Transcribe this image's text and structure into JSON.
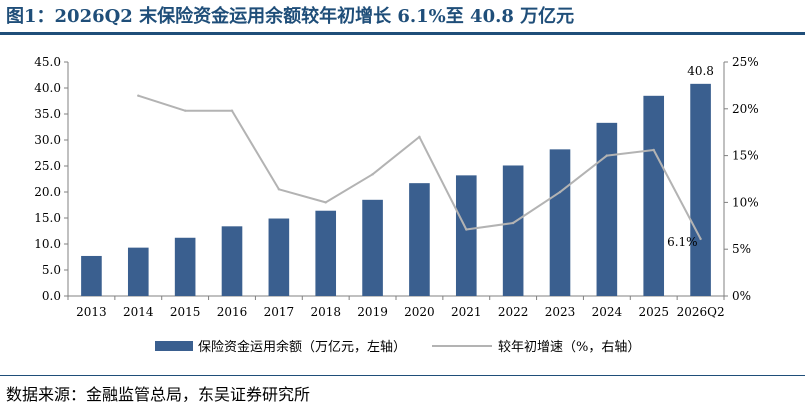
{
  "title": "图1：2026Q2 末保险资金运用余额较年初增长 6.1%至 40.8 万亿元",
  "source": "数据来源：金融监管总局，东吴证券研究所",
  "chart_data": {
    "type": "bar",
    "categories": [
      "2013",
      "2014",
      "2015",
      "2016",
      "2017",
      "2018",
      "2019",
      "2020",
      "2021",
      "2022",
      "2023",
      "2024",
      "2025",
      "2026Q2"
    ],
    "series": [
      {
        "name": "保险资金运用余额（万亿元，左轴）",
        "type": "bar",
        "axis": "left",
        "color": "#3a5f8f",
        "values": [
          7.7,
          9.3,
          11.2,
          13.4,
          14.9,
          16.4,
          18.5,
          21.7,
          23.2,
          25.1,
          28.2,
          33.3,
          38.5,
          40.8
        ]
      },
      {
        "name": "较年初增速（%，右轴）",
        "type": "line",
        "axis": "right",
        "color": "#b3b3b3",
        "values": [
          null,
          21.4,
          19.8,
          19.8,
          11.4,
          10.0,
          13.0,
          17.0,
          7.1,
          7.8,
          11.1,
          15.0,
          15.6,
          6.1
        ]
      }
    ],
    "yleft": {
      "ylim": [
        0,
        45
      ],
      "ticks": [
        "0.0",
        "5.0",
        "10.0",
        "15.0",
        "20.0",
        "25.0",
        "30.0",
        "35.0",
        "40.0",
        "45.0"
      ]
    },
    "yright": {
      "ylim": [
        0,
        25
      ],
      "ticks": [
        "0%",
        "5%",
        "10%",
        "15%",
        "20%",
        "25%"
      ]
    },
    "annotations": [
      {
        "text": "40.8",
        "series": 0,
        "index": 13
      },
      {
        "text": "6.1%",
        "series": 1,
        "index": 13
      }
    ],
    "grid": false,
    "legend_position": "bottom"
  }
}
